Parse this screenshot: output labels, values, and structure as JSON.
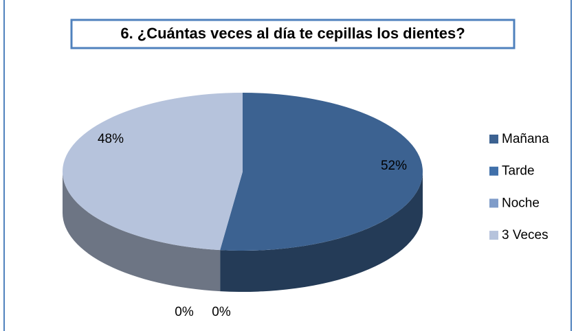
{
  "chart_data": {
    "type": "pie3d",
    "title": "6. ¿Cuántas veces al día te cepillas los dientes?",
    "categories": [
      "Mañana",
      "Tarde",
      "Noche",
      "3 Veces"
    ],
    "values": [
      52,
      0,
      0,
      48
    ],
    "value_labels": [
      "52%",
      "0%",
      "0%",
      "48%"
    ],
    "colors": [
      "#3c6291",
      "#4070aa",
      "#7f9cc9",
      "#b6c3dc"
    ],
    "legend": "right"
  }
}
